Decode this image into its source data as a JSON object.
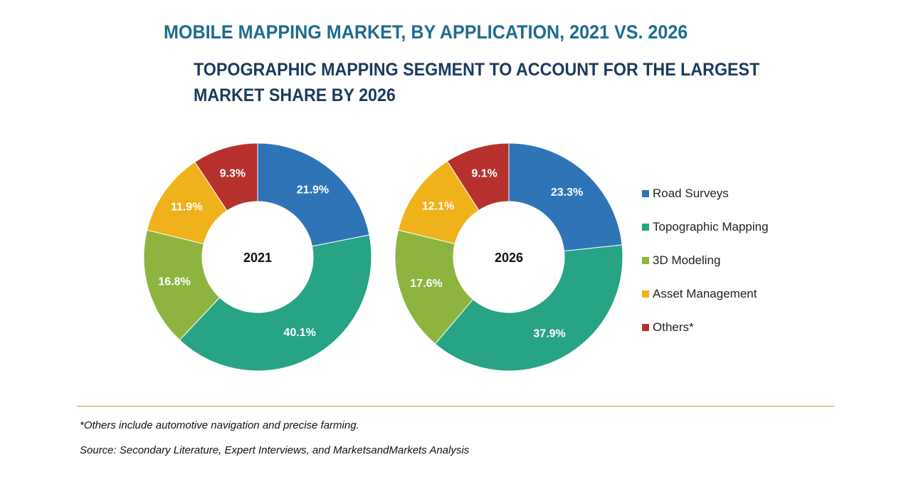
{
  "title": "MOBILE MAPPING MARKET, BY APPLICATION, 2021 VS. 2026",
  "subtitle": "TOPOGRAPHIC MAPPING SEGMENT TO ACCOUNT FOR THE LARGEST MARKET SHARE BY 2026",
  "chart_data": {
    "type": "pie",
    "variant": "donut",
    "categories": [
      "Road Surveys",
      "Topographic Mapping",
      "3D Modeling",
      "Asset Management",
      "Others*"
    ],
    "colors": [
      "#2e74b6",
      "#27a385",
      "#8db43e",
      "#f0b21b",
      "#b7312c"
    ],
    "series": [
      {
        "name": "2021",
        "values": [
          21.9,
          40.1,
          16.8,
          11.9,
          9.3
        ],
        "labels": [
          "21.9%",
          "40.1%",
          "16.8%",
          "11.9%",
          "9.3%"
        ]
      },
      {
        "name": "2026",
        "values": [
          23.3,
          37.9,
          17.6,
          12.1,
          9.1
        ],
        "labels": [
          "23.3%",
          "37.9%",
          "17.6%",
          "12.1%",
          "9.1%"
        ]
      }
    ],
    "legend": "right"
  },
  "footnote": "*Others include automotive navigation and precise farming.",
  "source": "Source: Secondary Literature, Expert Interviews, and MarketsandMarkets Analysis"
}
